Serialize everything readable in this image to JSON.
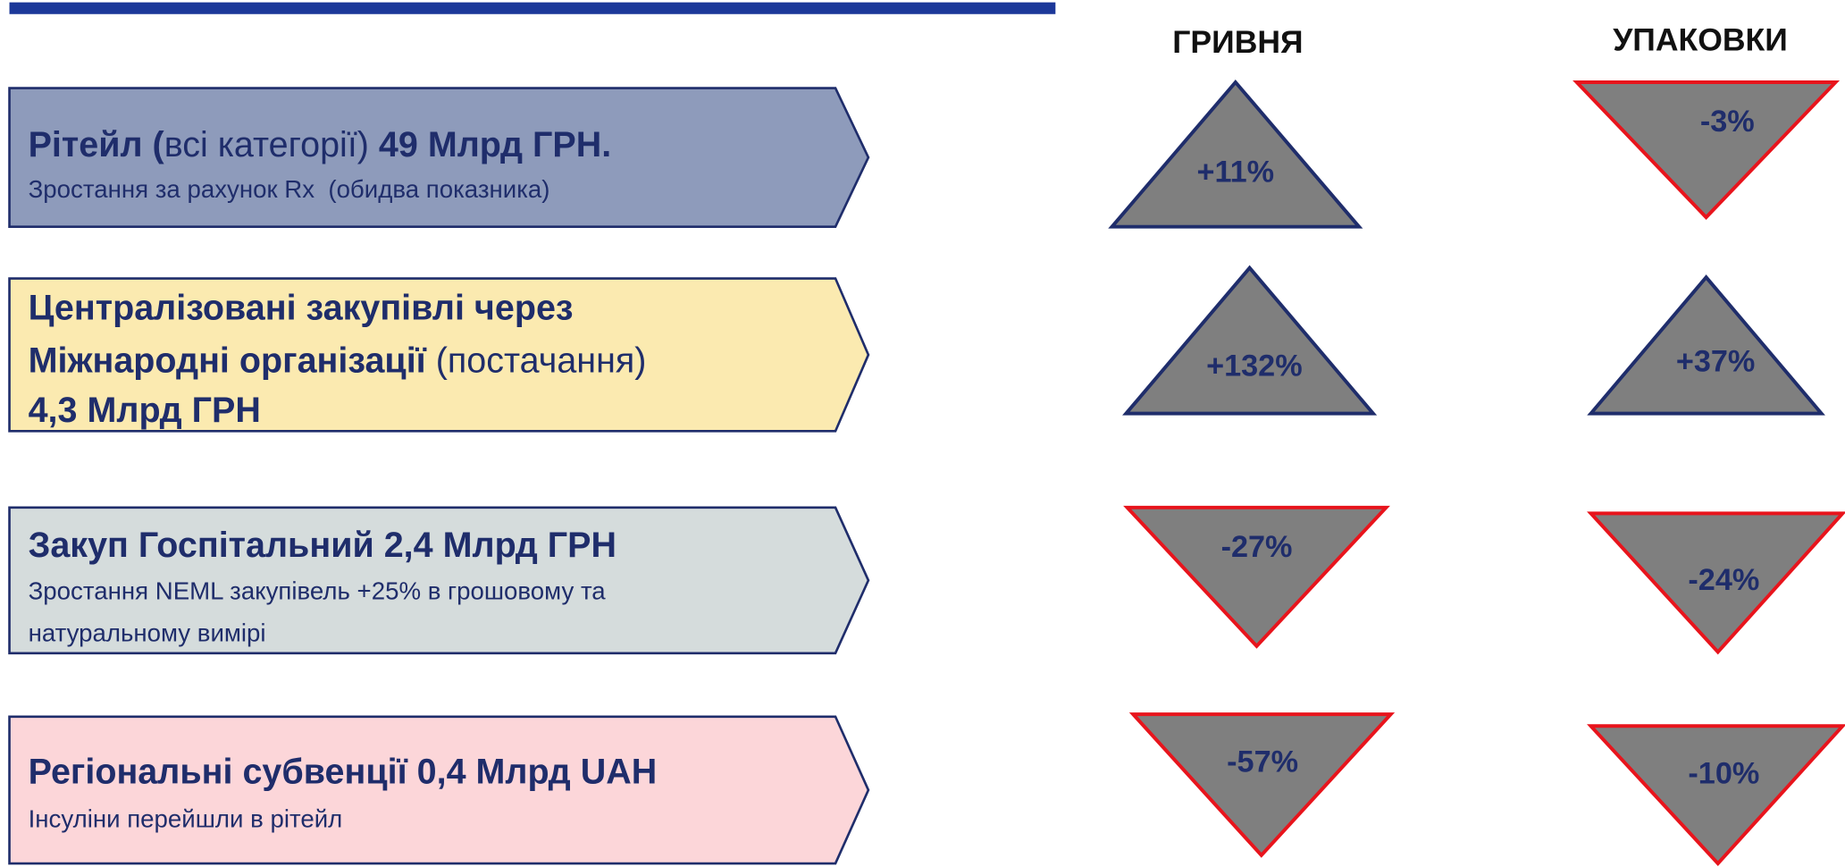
{
  "headers": [
    "ГРИВНЯ",
    "УПАКОВКИ"
  ],
  "rows": [
    {
      "lines": [
        [
          {
            "text": "Рітейл (",
            "bold": true
          },
          {
            "text": "всі категорії)",
            "bold": false
          },
          {
            "text": " 49 Млрд ГРН.",
            "bold": true
          }
        ],
        [
          {
            "text": "Зростання за рахунок Rx  (обидва показника)",
            "bold": false
          }
        ]
      ],
      "hryvnia": "+11%",
      "packages": "-3%"
    },
    {
      "lines": [
        [
          {
            "text": "Централізовані закупівлі через",
            "bold": true
          }
        ],
        [
          {
            "text": "Міжнародні організації",
            "bold": true
          },
          {
            "text": " (постачання)",
            "bold": false
          }
        ],
        [
          {
            "text": "4,3 Млрд ГРН",
            "bold": true
          }
        ]
      ],
      "hryvnia": "+132%",
      "packages": "+37%"
    },
    {
      "lines": [
        [
          {
            "text": "Закуп Госпітальний 2,4 Млрд ГРН",
            "bold": true
          }
        ],
        [
          {
            "text": "Зростання NEML закупівель +25% в грошовому та",
            "bold": false
          }
        ],
        [
          {
            "text": "натуральному вимірі",
            "bold": false
          }
        ]
      ],
      "hryvnia": "-27%",
      "packages": "-24%"
    },
    {
      "lines": [
        [
          {
            "text": "Регіональні субвенції 0,4 Млрд UAH",
            "bold": true
          }
        ],
        [
          {
            "text": "Інсуліни перейшли в рітейл",
            "bold": false
          }
        ]
      ],
      "hryvnia": "-57%",
      "packages": "-10%"
    }
  ]
}
